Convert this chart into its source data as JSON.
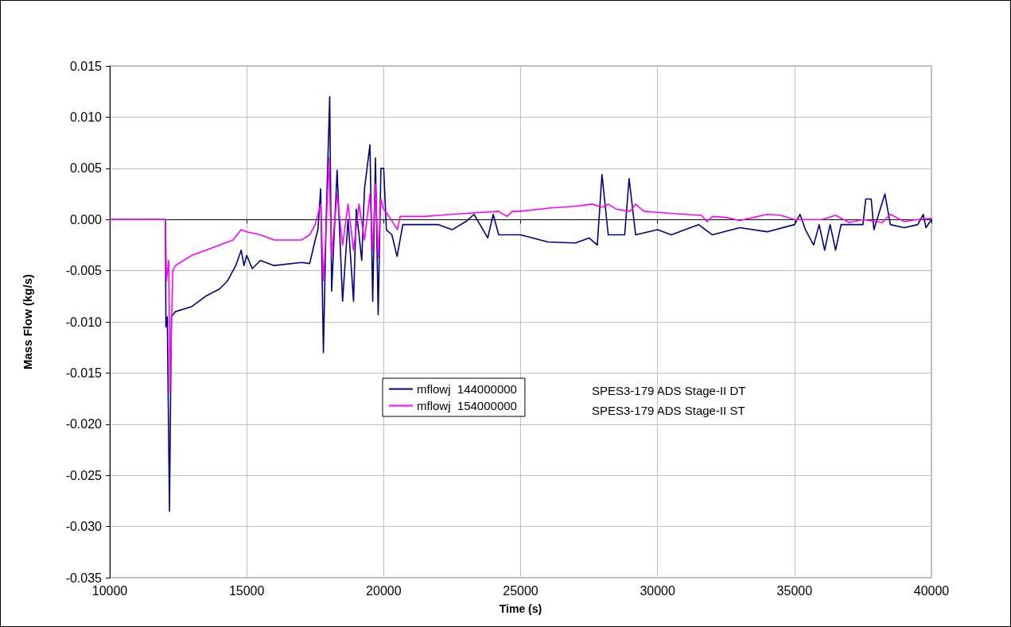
{
  "chart_data": {
    "type": "line",
    "xlabel": "Time (s)",
    "ylabel": "Mass Flow (kg/s)",
    "xlim": [
      10000,
      40000
    ],
    "xticks": [
      10000,
      15000,
      20000,
      25000,
      30000,
      35000,
      40000
    ],
    "ylim": [
      -0.035,
      0.015
    ],
    "yticks": [
      {
        "value": -0.035,
        "label": "-0.035"
      },
      {
        "value": -0.03,
        "label": "-0.030"
      },
      {
        "value": -0.025,
        "label": "-0.025"
      },
      {
        "value": -0.02,
        "label": "-0.020"
      },
      {
        "value": -0.015,
        "label": "-0.015"
      },
      {
        "value": -0.01,
        "label": "-0.010"
      },
      {
        "value": -0.005,
        "label": "-0.005"
      },
      {
        "value": 0,
        "label": "0.000"
      },
      {
        "value": 0.005,
        "label": "0.005"
      },
      {
        "value": 0.01,
        "label": "0.010"
      },
      {
        "value": 0.015,
        "label": "0.015"
      }
    ],
    "grid": true,
    "legend": "center",
    "marker": "none",
    "line_style": "solid",
    "annotations": [
      "SPES3-179 ADS Stage-II DT",
      "SPES3-179 ADS Stage-II ST"
    ],
    "series": [
      {
        "name": "mflowj  144000000",
        "color": "#000080",
        "x": [
          10000,
          12030,
          12050,
          12100,
          12180,
          12250,
          12400,
          13000,
          13500,
          14000,
          14300,
          14600,
          14800,
          14900,
          15000,
          15200,
          15500,
          16000,
          17000,
          17300,
          17500,
          17600,
          17700,
          17800,
          17900,
          18030,
          18100,
          18300,
          18500,
          18700,
          18900,
          19000,
          19200,
          19300,
          19500,
          19600,
          19700,
          19800,
          19900,
          20000,
          20100,
          20300,
          20490,
          20700,
          21000,
          22000,
          22500,
          23000,
          23300,
          23800,
          24000,
          24200,
          25000,
          26000,
          27000,
          27500,
          27800,
          27970,
          28200,
          28500,
          28800,
          28960,
          29200,
          30000,
          30500,
          31000,
          31500,
          32000,
          33000,
          34000,
          35000,
          35200,
          35400,
          35700,
          35900,
          36100,
          36300,
          36500,
          36700,
          37000,
          37500,
          37600,
          37800,
          37900,
          38300,
          38500,
          39000,
          39500,
          39700,
          39800,
          40000
        ],
        "values": [
          0,
          0,
          -0.0105,
          -0.0095,
          -0.0285,
          -0.0095,
          -0.009,
          -0.0085,
          -0.0075,
          -0.0068,
          -0.006,
          -0.0045,
          -0.003,
          -0.0045,
          -0.0035,
          -0.0048,
          -0.004,
          -0.0045,
          -0.0042,
          -0.0043,
          -0.002,
          -0.001,
          0.003,
          -0.013,
          0,
          0.012,
          -0.007,
          0.0048,
          -0.008,
          0,
          -0.008,
          0.001,
          -0.004,
          0.003,
          0.0073,
          -0.008,
          0.006,
          -0.0093,
          0.005,
          0.005,
          -0.001,
          -0.0015,
          -0.0036,
          -0.0005,
          -0.0005,
          -0.0005,
          -0.001,
          -0.0002,
          0.0005,
          -0.0018,
          0.0005,
          -0.0015,
          -0.0015,
          -0.0022,
          -0.0023,
          -0.0018,
          -0.0025,
          0.0044,
          -0.0015,
          -0.0015,
          -0.0015,
          0.004,
          -0.0015,
          -0.001,
          -0.0015,
          -0.001,
          -0.0005,
          -0.0015,
          -0.0008,
          -0.0012,
          -0.0005,
          0.0005,
          -0.001,
          -0.0025,
          -0.0005,
          -0.003,
          -0.0005,
          -0.003,
          -0.0005,
          -0.0005,
          -0.0005,
          0.002,
          0.002,
          -0.001,
          0.0025,
          -0.0005,
          -0.0008,
          -0.0005,
          0.0005,
          -0.0008,
          0
        ]
      },
      {
        "name": "mflowj  154000000",
        "color": "#ff00ff",
        "x": [
          10000,
          12030,
          12070,
          12150,
          12200,
          12300,
          12400,
          13000,
          14000,
          14500,
          14800,
          15000,
          15500,
          16000,
          17000,
          17300,
          17500,
          17700,
          17800,
          17900,
          18000,
          18100,
          18300,
          18500,
          18700,
          18900,
          19100,
          19300,
          19500,
          19600,
          19700,
          19800,
          19900,
          20000,
          20200,
          20500,
          20600,
          21500,
          22000,
          23000,
          24200,
          24500,
          24700,
          25000,
          26000,
          27000,
          27600,
          28000,
          28200,
          28500,
          29000,
          29200,
          29500,
          30000,
          31000,
          31600,
          31800,
          32000,
          32500,
          33000,
          33500,
          34000,
          34500,
          35000,
          36000,
          36500,
          37000,
          37500,
          38200,
          38500,
          39000,
          39500,
          40000
        ],
        "values": [
          0,
          0,
          -0.006,
          -0.004,
          -0.017,
          -0.005,
          -0.0045,
          -0.0035,
          -0.0025,
          -0.002,
          -0.001,
          -0.0012,
          -0.0015,
          -0.002,
          -0.002,
          -0.0015,
          -0.0005,
          0.0015,
          -0.006,
          -0.001,
          0.006,
          -0.0035,
          0.0025,
          -0.0025,
          0.0015,
          -0.003,
          0.0015,
          -0.002,
          0.0025,
          -0.003,
          0.0035,
          -0.0037,
          0.002,
          0.001,
          0.0003,
          -0.001,
          0.0003,
          0.0003,
          0.0004,
          0.0006,
          0.0008,
          0.0003,
          0.0008,
          0.0008,
          0.0011,
          0.0013,
          0.0015,
          0.0012,
          0.0015,
          0.001,
          0.0008,
          0.0015,
          0.0008,
          0.0007,
          0.0005,
          0.0004,
          -0.0002,
          0.0003,
          0.0002,
          -0.0001,
          0.0002,
          0.0005,
          0.0004,
          0,
          0,
          0.0004,
          -0.0003,
          0,
          -0.0003,
          0.0005,
          -0.0002,
          0,
          0.0001
        ]
      }
    ]
  }
}
